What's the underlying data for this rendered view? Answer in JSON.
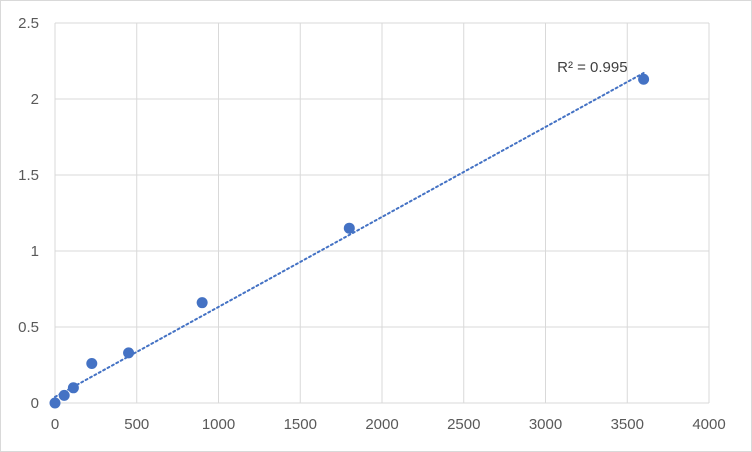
{
  "chart_data": {
    "type": "scatter",
    "title": "",
    "xlabel": "",
    "ylabel": "",
    "xlim": [
      0,
      4000
    ],
    "ylim": [
      0,
      2.5
    ],
    "xticks": [
      0,
      500,
      1000,
      1500,
      2000,
      2500,
      3000,
      3500,
      4000
    ],
    "yticks": [
      0,
      0.5,
      1,
      1.5,
      2,
      2.5
    ],
    "xtick_labels": [
      "0",
      "500",
      "1000",
      "1500",
      "2000",
      "2500",
      "3000",
      "3500",
      "4000"
    ],
    "ytick_labels": [
      "0",
      "0.5",
      "1",
      "1.5",
      "2",
      "2.5"
    ],
    "grid": true,
    "legend": "none",
    "series": [
      {
        "x": [
          0,
          56.25,
          112.5,
          225,
          450,
          900,
          1800,
          3600
        ],
        "y": [
          0.0,
          0.05,
          0.1,
          0.26,
          0.33,
          0.66,
          1.15,
          2.13
        ],
        "color": "#4472c4"
      }
    ],
    "trendline": {
      "type": "linear",
      "style": "dotted",
      "color": "#4472c4",
      "x_range": [
        0,
        3600
      ],
      "slope": 0.000592,
      "intercept": 0.04,
      "label": "R² = 0.995"
    }
  }
}
